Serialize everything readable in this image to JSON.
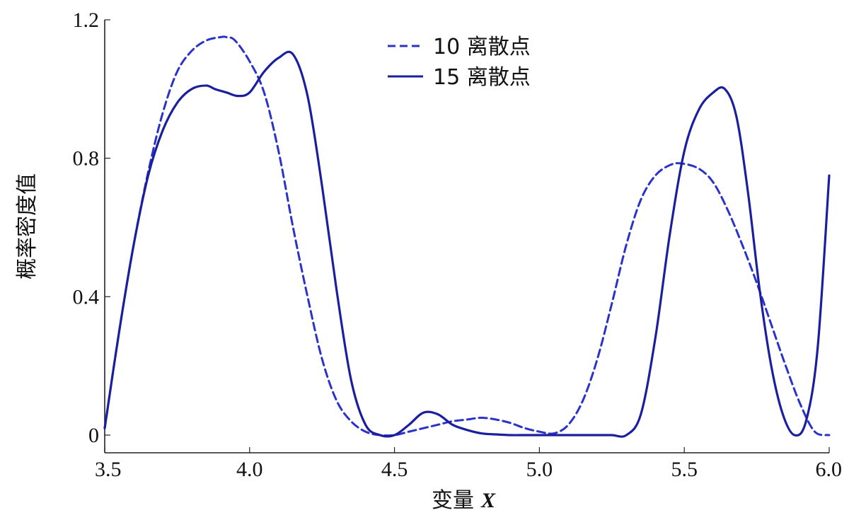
{
  "chart_data": {
    "type": "line",
    "title": "",
    "xlabel": "变量",
    "xlabel_var": "X",
    "ylabel": "概率密度值",
    "xlim": [
      3.5,
      6.0
    ],
    "ylim": [
      0,
      1.2
    ],
    "x_ticks": [
      3.5,
      4.0,
      4.5,
      5.0,
      5.5,
      6.0
    ],
    "x_tick_labels": [
      "3.5",
      "4.0",
      "4.5",
      "5.0",
      "5.5",
      "6.0"
    ],
    "y_ticks": [
      0,
      0.4,
      0.8,
      1.2
    ],
    "y_tick_labels": [
      "0",
      "0.4",
      "0.8",
      "1.2"
    ],
    "grid": false,
    "legend_position": "top-center",
    "series": [
      {
        "name": "10 离散点",
        "style": "dashed",
        "color": "#2a33c8",
        "x": [
          3.5,
          3.55,
          3.6,
          3.65,
          3.7,
          3.75,
          3.8,
          3.85,
          3.9,
          3.92,
          3.95,
          4.0,
          4.05,
          4.1,
          4.15,
          4.2,
          4.25,
          4.3,
          4.35,
          4.4,
          4.45,
          4.5,
          4.55,
          4.6,
          4.65,
          4.7,
          4.75,
          4.8,
          4.85,
          4.9,
          4.95,
          5.0,
          5.05,
          5.1,
          5.15,
          5.2,
          5.25,
          5.3,
          5.35,
          5.4,
          5.45,
          5.49,
          5.55,
          5.6,
          5.65,
          5.7,
          5.75,
          5.8,
          5.85,
          5.9,
          5.95,
          6.0
        ],
        "y": [
          0.02,
          0.3,
          0.55,
          0.76,
          0.93,
          1.05,
          1.11,
          1.14,
          1.15,
          1.15,
          1.14,
          1.08,
          0.99,
          0.82,
          0.6,
          0.4,
          0.22,
          0.1,
          0.04,
          0.01,
          0.0,
          0.0,
          0.01,
          0.02,
          0.03,
          0.04,
          0.045,
          0.05,
          0.045,
          0.035,
          0.02,
          0.01,
          0.005,
          0.03,
          0.1,
          0.22,
          0.38,
          0.55,
          0.68,
          0.75,
          0.78,
          0.785,
          0.77,
          0.73,
          0.65,
          0.55,
          0.44,
          0.32,
          0.2,
          0.09,
          0.01,
          0.0
        ]
      },
      {
        "name": "15 离散点",
        "style": "solid",
        "color": "#1a1f9e",
        "x": [
          3.5,
          3.55,
          3.6,
          3.65,
          3.7,
          3.75,
          3.8,
          3.85,
          3.88,
          3.92,
          3.96,
          4.0,
          4.05,
          4.1,
          4.15,
          4.2,
          4.25,
          4.3,
          4.35,
          4.4,
          4.45,
          4.5,
          4.55,
          4.6,
          4.65,
          4.7,
          4.75,
          4.8,
          4.85,
          4.9,
          4.95,
          5.0,
          5.05,
          5.1,
          5.15,
          5.2,
          5.25,
          5.3,
          5.35,
          5.4,
          5.45,
          5.5,
          5.55,
          5.6,
          5.64,
          5.68,
          5.72,
          5.76,
          5.8,
          5.84,
          5.88,
          5.92,
          5.96,
          6.0
        ],
        "y": [
          0.02,
          0.3,
          0.55,
          0.75,
          0.88,
          0.96,
          1.0,
          1.01,
          1.0,
          0.99,
          0.98,
          0.99,
          1.05,
          1.09,
          1.1,
          0.98,
          0.72,
          0.42,
          0.16,
          0.03,
          0.0,
          0.0,
          0.03,
          0.065,
          0.06,
          0.03,
          0.015,
          0.005,
          0.002,
          0.0,
          0.0,
          0.0,
          0.0,
          0.0,
          0.0,
          0.0,
          0.0,
          0.0,
          0.06,
          0.28,
          0.58,
          0.82,
          0.94,
          0.99,
          1.0,
          0.92,
          0.7,
          0.42,
          0.2,
          0.06,
          0.0,
          0.04,
          0.25,
          0.75
        ]
      }
    ]
  }
}
